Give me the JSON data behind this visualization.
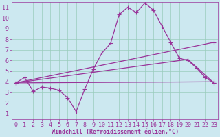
{
  "background_color": "#cce8f0",
  "grid_color": "#99ccbb",
  "line_color": "#993399",
  "xlabel": "Windchill (Refroidissement éolien,°C)",
  "xlim": [
    -0.5,
    23.5
  ],
  "ylim": [
    0.5,
    11.5
  ],
  "xticks": [
    0,
    1,
    2,
    3,
    4,
    5,
    6,
    7,
    8,
    9,
    10,
    11,
    12,
    13,
    14,
    15,
    16,
    17,
    18,
    19,
    20,
    21,
    22,
    23
  ],
  "yticks": [
    1,
    2,
    3,
    4,
    5,
    6,
    7,
    8,
    9,
    10,
    11
  ],
  "line1_x": [
    0,
    1,
    2,
    3,
    4,
    5,
    6,
    7,
    8,
    9,
    10,
    11,
    12,
    13,
    14,
    15,
    16,
    17,
    18,
    19,
    20,
    21,
    22,
    23
  ],
  "line1_y": [
    3.9,
    4.4,
    3.1,
    3.5,
    3.4,
    3.2,
    2.5,
    1.2,
    3.3,
    5.2,
    6.7,
    7.6,
    10.3,
    11.0,
    10.5,
    11.4,
    10.7,
    9.2,
    7.7,
    6.2,
    6.0,
    5.3,
    4.4,
    3.9
  ],
  "line2_x": [
    0,
    23
  ],
  "line2_y": [
    3.9,
    4.0
  ],
  "line3_x": [
    0,
    23
  ],
  "line3_y": [
    3.9,
    7.7
  ],
  "line4_x": [
    0,
    20,
    23
  ],
  "line4_y": [
    3.9,
    6.1,
    3.9
  ],
  "marker": "+",
  "markersize": 4,
  "markeredgewidth": 0.8,
  "linewidth": 0.9,
  "font_size": 6
}
